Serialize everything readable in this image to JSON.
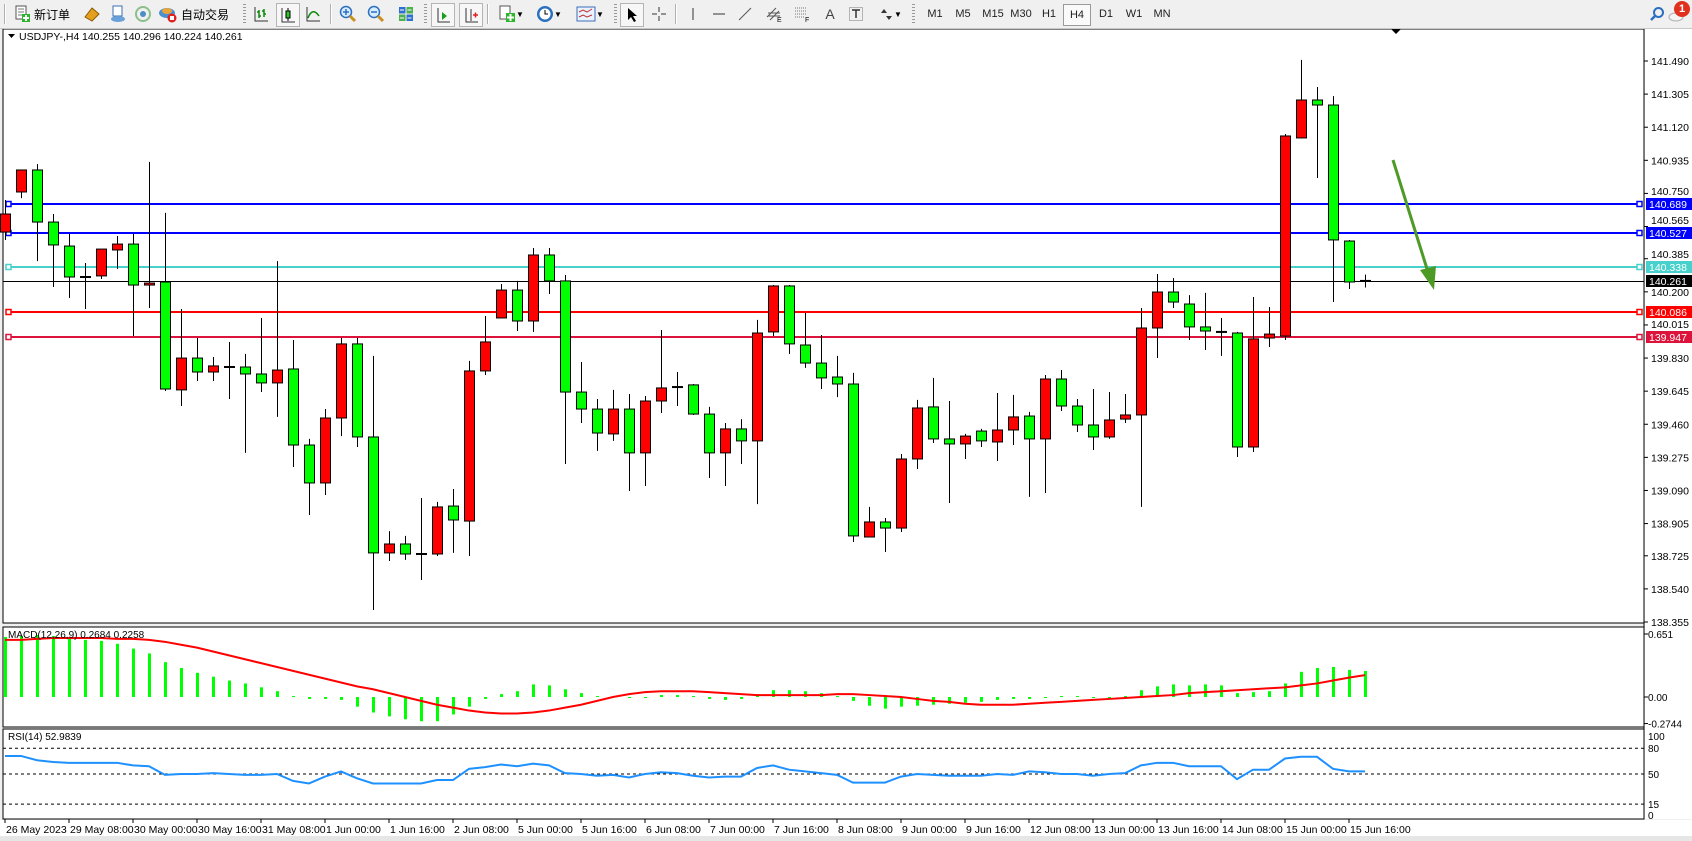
{
  "toolbar": {
    "new_order_label": "新订单",
    "auto_trade_label": "自动交易",
    "timeframes": [
      "M1",
      "M5",
      "M15",
      "M30",
      "H1",
      "H4",
      "D1",
      "W1",
      "MN"
    ],
    "active_timeframe": "H4",
    "notification_count": "1",
    "icons": [
      "new-order-icon",
      "gold-icon",
      "account-icon",
      "signal-icon",
      "auto-trade-icon",
      "bar-chart-icon",
      "candlestick-icon",
      "line-chart-icon",
      "zoom-in-icon",
      "zoom-out-icon",
      "tile-windows-icon",
      "auto-scroll-icon",
      "chart-shift-icon",
      "add-indicator-icon",
      "periods-icon",
      "templates-icon",
      "cursor-icon",
      "crosshair-icon",
      "vertical-line-icon",
      "horizontal-line-icon",
      "trendline-icon",
      "equidistant-channel-icon",
      "fibonacci-icon",
      "text-icon",
      "text-label-icon",
      "arrows-icon",
      "search-icon",
      "notification-icon"
    ]
  },
  "chart_header": {
    "symbol_period": "USDJPY-,H4",
    "ohlc_text": "140.255 140.296 140.224 140.261"
  },
  "chart_data": {
    "type": "candlestick",
    "symbol": "USDJPY-",
    "timeframe": "H4",
    "bull_color": "#ff0000",
    "bear_color": "#00ff00",
    "ohlc_order": [
      "open",
      "high",
      "low",
      "close"
    ],
    "ohlc": [
      [
        140.534,
        140.713,
        140.49,
        140.635
      ],
      [
        140.758,
        140.881,
        140.724,
        140.881
      ],
      [
        140.881,
        140.914,
        140.372,
        140.59
      ],
      [
        140.59,
        140.635,
        140.227,
        140.462
      ],
      [
        140.456,
        140.523,
        140.166,
        140.283
      ],
      [
        140.283,
        140.361,
        140.104,
        140.283
      ],
      [
        140.289,
        140.439,
        140.272,
        140.439
      ],
      [
        140.434,
        140.512,
        140.328,
        140.467
      ],
      [
        140.467,
        140.523,
        139.953,
        140.238
      ],
      [
        140.238,
        140.926,
        140.11,
        140.249
      ],
      [
        140.255,
        140.641,
        139.646,
        139.657
      ],
      [
        139.652,
        140.104,
        139.562,
        139.83
      ],
      [
        139.83,
        139.942,
        139.702,
        139.752
      ],
      [
        139.752,
        139.836,
        139.702,
        139.786
      ],
      [
        139.78,
        139.92,
        139.601,
        139.78
      ],
      [
        139.78,
        139.853,
        139.3,
        139.741
      ],
      [
        139.741,
        140.054,
        139.64,
        139.691
      ],
      [
        139.691,
        140.372,
        139.501,
        139.763
      ],
      [
        139.769,
        139.931,
        139.221,
        139.344
      ],
      [
        139.344,
        139.378,
        138.953,
        139.132
      ],
      [
        139.132,
        139.545,
        139.065,
        139.495
      ],
      [
        139.495,
        139.942,
        139.394,
        139.909
      ],
      [
        139.909,
        139.942,
        139.333,
        139.389
      ],
      [
        139.389,
        139.842,
        138.422,
        138.741
      ],
      [
        138.741,
        138.863,
        138.696,
        138.791
      ],
      [
        138.791,
        138.836,
        138.702,
        138.735
      ],
      [
        138.735,
        139.048,
        138.59,
        138.735
      ],
      [
        138.735,
        139.026,
        138.724,
        138.998
      ],
      [
        139.003,
        139.098,
        138.741,
        138.925
      ],
      [
        138.919,
        139.814,
        138.724,
        139.758
      ],
      [
        139.758,
        140.065,
        139.735,
        139.92
      ],
      [
        140.054,
        140.244,
        140.054,
        140.21
      ],
      [
        140.21,
        140.261,
        139.981,
        140.037
      ],
      [
        140.037,
        140.445,
        139.976,
        140.406
      ],
      [
        140.406,
        140.445,
        140.188,
        140.261
      ],
      [
        140.261,
        140.294,
        139.238,
        139.64
      ],
      [
        139.64,
        139.808,
        139.467,
        139.545
      ],
      [
        139.545,
        139.601,
        139.311,
        139.411
      ],
      [
        139.406,
        139.652,
        139.367,
        139.545
      ],
      [
        139.545,
        139.629,
        139.087,
        139.3
      ],
      [
        139.3,
        139.618,
        139.115,
        139.59
      ],
      [
        139.59,
        139.987,
        139.523,
        139.663
      ],
      [
        139.668,
        139.752,
        139.562,
        139.668
      ],
      [
        139.68,
        139.685,
        139.512,
        139.517
      ],
      [
        139.517,
        139.557,
        139.16,
        139.3
      ],
      [
        139.3,
        139.467,
        139.115,
        139.434
      ],
      [
        139.434,
        139.489,
        139.238,
        139.367
      ],
      [
        139.367,
        140.043,
        139.014,
        139.97
      ],
      [
        139.976,
        140.238,
        139.953,
        140.233
      ],
      [
        140.233,
        140.238,
        139.853,
        139.909
      ],
      [
        139.903,
        140.082,
        139.775,
        139.802
      ],
      [
        139.802,
        139.959,
        139.657,
        139.719
      ],
      [
        139.724,
        139.842,
        139.612,
        139.685
      ],
      [
        139.685,
        139.747,
        138.802,
        138.836
      ],
      [
        138.83,
        138.998,
        138.83,
        138.914
      ],
      [
        138.914,
        138.936,
        138.746,
        138.88
      ],
      [
        138.88,
        139.294,
        138.858,
        139.266
      ],
      [
        139.266,
        139.596,
        139.21,
        139.551
      ],
      [
        139.557,
        139.719,
        139.355,
        139.378
      ],
      [
        139.378,
        139.59,
        139.02,
        139.35
      ],
      [
        139.35,
        139.406,
        139.266,
        139.394
      ],
      [
        139.422,
        139.434,
        139.333,
        139.367
      ],
      [
        139.361,
        139.635,
        139.255,
        139.428
      ],
      [
        139.428,
        139.624,
        139.344,
        139.501
      ],
      [
        139.506,
        139.529,
        139.054,
        139.378
      ],
      [
        139.378,
        139.735,
        139.076,
        139.713
      ],
      [
        139.713,
        139.763,
        139.534,
        139.562
      ],
      [
        139.562,
        139.601,
        139.417,
        139.456
      ],
      [
        139.456,
        139.657,
        139.316,
        139.389
      ],
      [
        139.389,
        139.64,
        139.378,
        139.484
      ],
      [
        139.489,
        139.629,
        139.467,
        139.512
      ],
      [
        139.512,
        140.11,
        138.998,
        139.998
      ],
      [
        139.998,
        140.3,
        139.83,
        140.199
      ],
      [
        140.199,
        140.277,
        140.11,
        140.143
      ],
      [
        140.132,
        140.182,
        139.931,
        140.004
      ],
      [
        140.004,
        140.194,
        139.875,
        139.981
      ],
      [
        139.976,
        140.054,
        139.842,
        139.976
      ],
      [
        139.97,
        139.976,
        139.277,
        139.333
      ],
      [
        139.333,
        140.171,
        139.305,
        139.937
      ],
      [
        139.942,
        140.115,
        139.892,
        139.964
      ],
      [
        139.953,
        141.082,
        139.931,
        141.071
      ],
      [
        141.06,
        141.496,
        141.06,
        141.272
      ],
      [
        141.272,
        141.345,
        140.836,
        141.244
      ],
      [
        141.244,
        141.294,
        140.143,
        140.49
      ],
      [
        140.484,
        140.49,
        140.216,
        140.255
      ],
      [
        140.255,
        140.296,
        140.224,
        140.261
      ]
    ],
    "price_ticks": [
      "141.490",
      "141.305",
      "141.120",
      "140.935",
      "140.750",
      "140.565",
      "140.385",
      "140.200",
      "140.015",
      "139.830",
      "139.645",
      "139.460",
      "139.275",
      "139.090",
      "138.905",
      "138.725",
      "138.540",
      "138.355"
    ],
    "price_range": [
      138.355,
      141.49
    ],
    "levels": [
      {
        "price": "140.689",
        "color": "#0000ff"
      },
      {
        "price": "140.527",
        "color": "#0000ff"
      },
      {
        "price": "140.338",
        "color": "#48d1cc"
      },
      {
        "price": "140.086",
        "color": "#ff0000"
      },
      {
        "price": "139.947",
        "color": "#dc143c"
      }
    ],
    "bid": {
      "price": "140.261",
      "color": "#000000"
    },
    "annotation_arrow": {
      "color": "#4e9a26",
      "direction": "down-right"
    },
    "time_labels": [
      "26 May 2023",
      "29 May 08:00",
      "30 May 00:00",
      "30 May 16:00",
      "31 May 08:00",
      "1 Jun 00:00",
      "1 Jun 16:00",
      "2 Jun 08:00",
      "5 Jun 00:00",
      "5 Jun 16:00",
      "6 Jun 08:00",
      "7 Jun 00:00",
      "7 Jun 16:00",
      "8 Jun 08:00",
      "9 Jun 00:00",
      "9 Jun 16:00",
      "12 Jun 08:00",
      "13 Jun 00:00",
      "13 Jun 16:00",
      "14 Jun 08:00",
      "15 Jun 00:00",
      "15 Jun 16:00"
    ],
    "macd": {
      "label": "MACD(12,26,9) 0.2684 0.2258",
      "ticks": [
        "0.651",
        "0.00",
        "-0.2744"
      ],
      "range": [
        -0.2744,
        0.651
      ],
      "histogram_color": "#00ff00",
      "signal_color": "#ff0000",
      "main": [
        0.62,
        0.63,
        0.64,
        0.63,
        0.61,
        0.59,
        0.58,
        0.55,
        0.5,
        0.45,
        0.36,
        0.3,
        0.25,
        0.21,
        0.17,
        0.14,
        0.1,
        0.06,
        0.01,
        -0.02,
        -0.02,
        -0.03,
        -0.1,
        -0.16,
        -0.2,
        -0.23,
        -0.25,
        -0.25,
        -0.18,
        -0.1,
        -0.02,
        0.03,
        0.06,
        0.13,
        0.12,
        0.08,
        0.04,
        0.01,
        0.01,
        -0.01,
        0.0,
        0.02,
        0.02,
        0.01,
        -0.02,
        -0.03,
        -0.02,
        0.03,
        0.07,
        0.07,
        0.06,
        0.04,
        0.01,
        -0.04,
        -0.09,
        -0.12,
        -0.1,
        -0.09,
        -0.08,
        -0.07,
        -0.06,
        -0.05,
        -0.03,
        -0.02,
        -0.02,
        0.0,
        0.01,
        0.01,
        -0.01,
        0.0,
        0.01,
        0.07,
        0.11,
        0.13,
        0.12,
        0.13,
        0.12,
        0.04,
        0.05,
        0.06,
        0.14,
        0.26,
        0.3,
        0.31,
        0.28,
        0.2684
      ],
      "signal": [
        0.59,
        0.59,
        0.6,
        0.61,
        0.61,
        0.61,
        0.61,
        0.6,
        0.6,
        0.59,
        0.57,
        0.54,
        0.51,
        0.47,
        0.43,
        0.39,
        0.35,
        0.31,
        0.27,
        0.23,
        0.19,
        0.15,
        0.11,
        0.08,
        0.04,
        0.0,
        -0.04,
        -0.08,
        -0.11,
        -0.14,
        -0.16,
        -0.17,
        -0.17,
        -0.16,
        -0.14,
        -0.11,
        -0.08,
        -0.04,
        0.0,
        0.03,
        0.05,
        0.06,
        0.06,
        0.06,
        0.05,
        0.04,
        0.03,
        0.02,
        0.02,
        0.02,
        0.02,
        0.02,
        0.03,
        0.03,
        0.02,
        0.01,
        0.0,
        -0.02,
        -0.04,
        -0.05,
        -0.07,
        -0.08,
        -0.08,
        -0.08,
        -0.07,
        -0.06,
        -0.05,
        -0.04,
        -0.03,
        -0.02,
        -0.01,
        0.0,
        0.01,
        0.02,
        0.04,
        0.05,
        0.06,
        0.07,
        0.08,
        0.09,
        0.1,
        0.12,
        0.14,
        0.17,
        0.2,
        0.2258
      ]
    },
    "rsi": {
      "label": "RSI(14) 52.9839",
      "ticks": [
        "100",
        "80",
        "50",
        "15",
        "0"
      ],
      "levels": [
        80,
        50,
        15
      ],
      "range": [
        0,
        100
      ],
      "color": "#1e90ff",
      "values": [
        71,
        71,
        66,
        64,
        63,
        63,
        63,
        63,
        60,
        59,
        49,
        50,
        50,
        51,
        50,
        49,
        49,
        50,
        42,
        39,
        47,
        53,
        45,
        39,
        39,
        39,
        39,
        43,
        43,
        56,
        58,
        61,
        59,
        62,
        60,
        51,
        50,
        48,
        49,
        46,
        50,
        52,
        51,
        48,
        46,
        47,
        47,
        57,
        60,
        55,
        53,
        51,
        49,
        40,
        40,
        40,
        47,
        50,
        49,
        48,
        48,
        48,
        50,
        49,
        53,
        52,
        50,
        50,
        48,
        50,
        51,
        60,
        63,
        63,
        59,
        59,
        59,
        44,
        55,
        55,
        68,
        70,
        70,
        56,
        53,
        52.98
      ]
    }
  }
}
